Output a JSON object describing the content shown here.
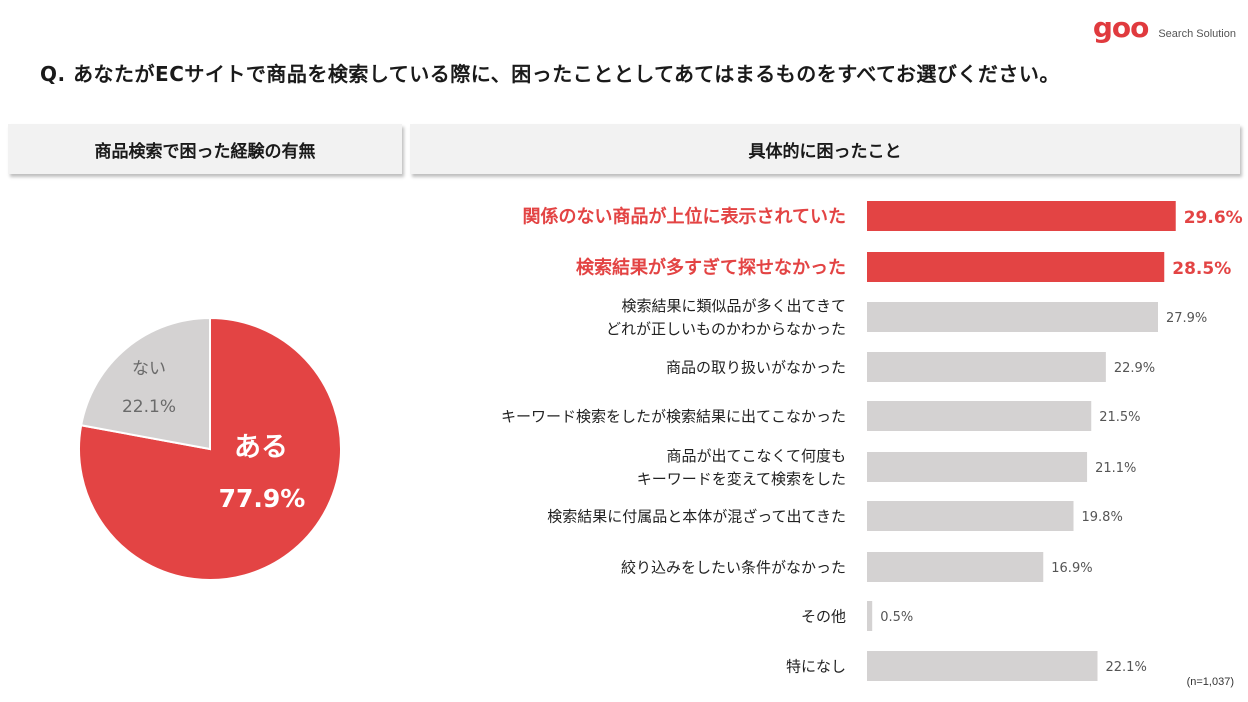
{
  "logo": {
    "mark": "goo",
    "sub": "Search Solution"
  },
  "question": "Q. あなたがECサイトで商品を検索している際に、困ったこととしてあてはまるものをすべてお選びください。",
  "left_header": "商品検索で困った経験の有無",
  "right_header": "具体的に困ったこと",
  "footnote": "(n=1,037)",
  "colors": {
    "highlight": "#e34444",
    "neutral": "#d4d2d2",
    "pie_ari": "#e34444",
    "pie_nai": "#d4d2d2"
  },
  "chart_data": [
    {
      "type": "pie",
      "slices": [
        {
          "label": "ある",
          "value": 77.9,
          "value_label": "77.9%"
        },
        {
          "label": "ない",
          "value": 22.1,
          "value_label": "22.1%"
        }
      ]
    },
    {
      "type": "bar",
      "orientation": "horizontal",
      "categories": [
        [
          "関係のない商品が上位に表示されていた"
        ],
        [
          "検索結果が多すぎて探せなかった"
        ],
        [
          "検索結果に類似品が多く出てきて",
          "どれが正しいものかわからなかった"
        ],
        [
          "商品の取り扱いがなかった"
        ],
        [
          "キーワード検索をしたが検索結果に出てこなかった"
        ],
        [
          "商品が出てこなくて何度も",
          "キーワードを変えて検索をした"
        ],
        [
          "検索結果に付属品と本体が混ざって出てきた"
        ],
        [
          "絞り込みをしたい条件がなかった"
        ],
        [
          "その他"
        ],
        [
          "特になし"
        ]
      ],
      "values": [
        29.6,
        28.5,
        27.9,
        22.9,
        21.5,
        21.1,
        19.8,
        16.9,
        0.5,
        22.1
      ],
      "value_labels": [
        "29.6%",
        "28.5%",
        "27.9%",
        "22.9%",
        "21.5%",
        "21.1%",
        "19.8%",
        "16.9%",
        "0.5%",
        "22.1%"
      ],
      "highlighted": [
        true,
        true,
        false,
        false,
        false,
        false,
        false,
        false,
        false,
        false
      ]
    }
  ]
}
